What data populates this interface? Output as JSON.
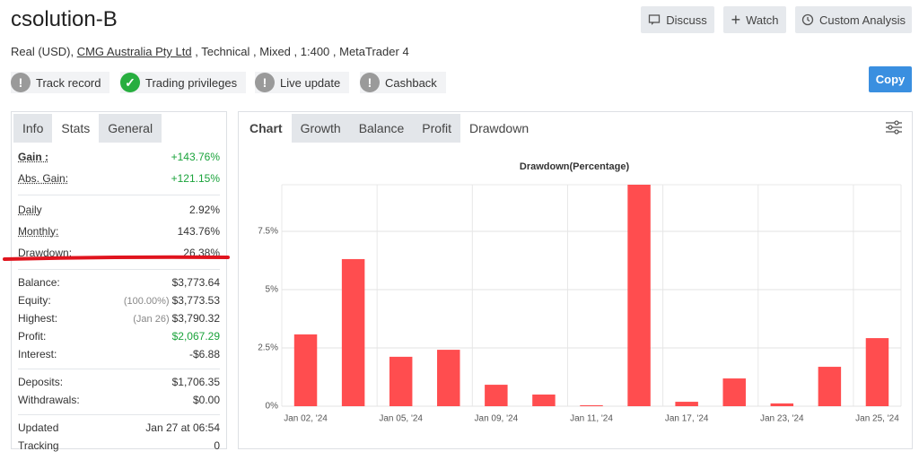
{
  "header": {
    "title": "csolution-B",
    "buttons": [
      "Discuss",
      "Watch",
      "Custom Analysis"
    ],
    "info": {
      "prefix": "Real (USD),",
      "broker": "CMG Australia Pty Ltd",
      "suffix": ", Technical , Mixed , 1:400 , MetaTrader 4"
    },
    "badges": [
      {
        "label": "Track record",
        "ok": false
      },
      {
        "label": "Trading privileges",
        "ok": true
      },
      {
        "label": "Live update",
        "ok": false
      },
      {
        "label": "Cashback",
        "ok": false
      }
    ],
    "copy": "Copy"
  },
  "left_tabs": {
    "tabs": [
      "Info",
      "Stats",
      "General"
    ],
    "active": 1
  },
  "stats": [
    [
      {
        "label": "Gain :",
        "value": "+143.76%",
        "color": "#1aa33b"
      },
      {
        "label": "Abs. Gain:",
        "value": "+121.15%",
        "color": "#1aa33b"
      }
    ],
    [
      {
        "label": "Daily",
        "value": "2.92%"
      },
      {
        "label": "Monthly:",
        "value": "143.76%"
      },
      {
        "label": "Drawdown:",
        "value": "26.38%"
      }
    ],
    [
      {
        "label": "Balance:",
        "value": "$3,773.64"
      },
      {
        "label": "Equity:",
        "note": "(100.00%)",
        "value": "$3,773.53"
      },
      {
        "label": "Highest:",
        "note": "(Jan 26)",
        "value": "$3,790.32"
      },
      {
        "label": "Profit:",
        "value": "$2,067.29",
        "color": "#1aa33b"
      },
      {
        "label": "Interest:",
        "value": "-$6.88"
      }
    ],
    [
      {
        "label": "Deposits:",
        "value": "$1,706.35"
      },
      {
        "label": "Withdrawals:",
        "value": "$0.00"
      }
    ],
    [
      {
        "label": "Updated",
        "value": "Jan 27 at 06:54"
      },
      {
        "label": "Tracking",
        "value": "0"
      }
    ]
  ],
  "chart_tabs": {
    "tabs": [
      "Chart",
      "Growth",
      "Balance",
      "Profit",
      "Drawdown"
    ],
    "active": 4
  },
  "chart_data": {
    "type": "bar",
    "title": "Drawdown(Percentage)",
    "color": "#ff4d4f",
    "categories": [
      "Jan 02, '24",
      null,
      "Jan 05, '24",
      null,
      "Jan 09, '24",
      null,
      "Jan 11, '24",
      null,
      "Jan 17, '24",
      null,
      "Jan 23, '24",
      null,
      "Jan 25, '24"
    ],
    "values": [
      3.08,
      6.31,
      2.12,
      2.42,
      0.92,
      0.5,
      0.04,
      9.5,
      0.19,
      1.19,
      0.12,
      1.69,
      2.92
    ],
    "ylim": [
      0,
      9.5
    ],
    "yticks": [
      {
        "value": 0,
        "label": "0%"
      },
      {
        "value": 2.5,
        "label": "2.5%"
      },
      {
        "value": 5,
        "label": "5%"
      },
      {
        "value": 7.5,
        "label": "7.5%"
      }
    ],
    "grid": true
  }
}
